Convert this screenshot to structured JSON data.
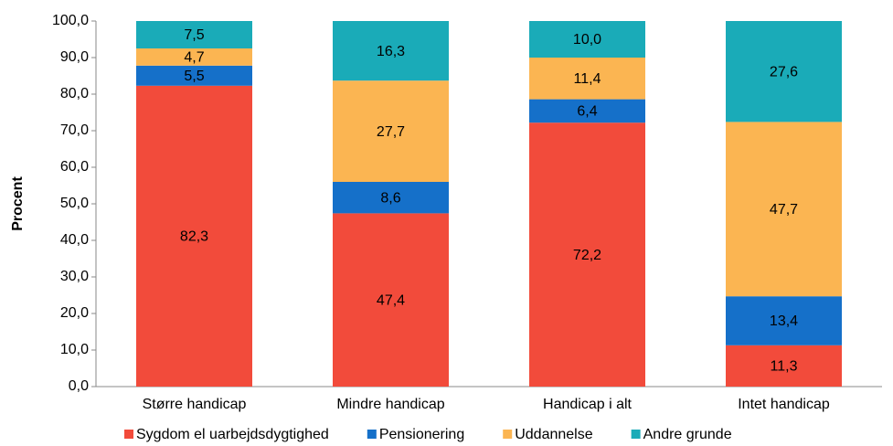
{
  "chart_data": {
    "type": "stacked_bar",
    "y_label": "Procent",
    "categories": [
      "Større handicap",
      "Mindre handicap",
      "Handicap i alt",
      "Intet handicap"
    ],
    "series": [
      {
        "name": "Sygdom el uarbejdsdygtighed",
        "color": "#f24b3b",
        "values": [
          82.3,
          47.4,
          72.2,
          11.3
        ],
        "value_labels": [
          "82,3",
          "47,4",
          "72,2",
          "11,3"
        ]
      },
      {
        "name": "Pensionering",
        "color": "#1570c9",
        "values": [
          5.5,
          8.6,
          6.4,
          13.4
        ],
        "value_labels": [
          "5,5",
          "8,6",
          "6,4",
          "13,4"
        ]
      },
      {
        "name": "Uddannelse",
        "color": "#fbb552",
        "values": [
          4.7,
          27.7,
          11.4,
          47.7
        ],
        "value_labels": [
          "4,7",
          "27,7",
          "11,4",
          "47,7"
        ]
      },
      {
        "name": "Andre grunde",
        "color": "#1aabb8",
        "values": [
          7.5,
          16.3,
          10.0,
          27.6
        ],
        "value_labels": [
          "7,5",
          "16,3",
          "10,0",
          "27,6"
        ]
      }
    ],
    "ylim": [
      0,
      100
    ],
    "yticks": [
      {
        "value": 0,
        "label": "0,0"
      },
      {
        "value": 10,
        "label": "10,0"
      },
      {
        "value": 20,
        "label": "20,0"
      },
      {
        "value": 30,
        "label": "30,0"
      },
      {
        "value": 40,
        "label": "40,0"
      },
      {
        "value": 50,
        "label": "50,0"
      },
      {
        "value": 60,
        "label": "60,0"
      },
      {
        "value": 70,
        "label": "70,0"
      },
      {
        "value": 80,
        "label": "80,0"
      },
      {
        "value": 90,
        "label": "90,0"
      },
      {
        "value": 100,
        "label": "100,0"
      }
    ],
    "grid": false,
    "legend": "bottom"
  }
}
